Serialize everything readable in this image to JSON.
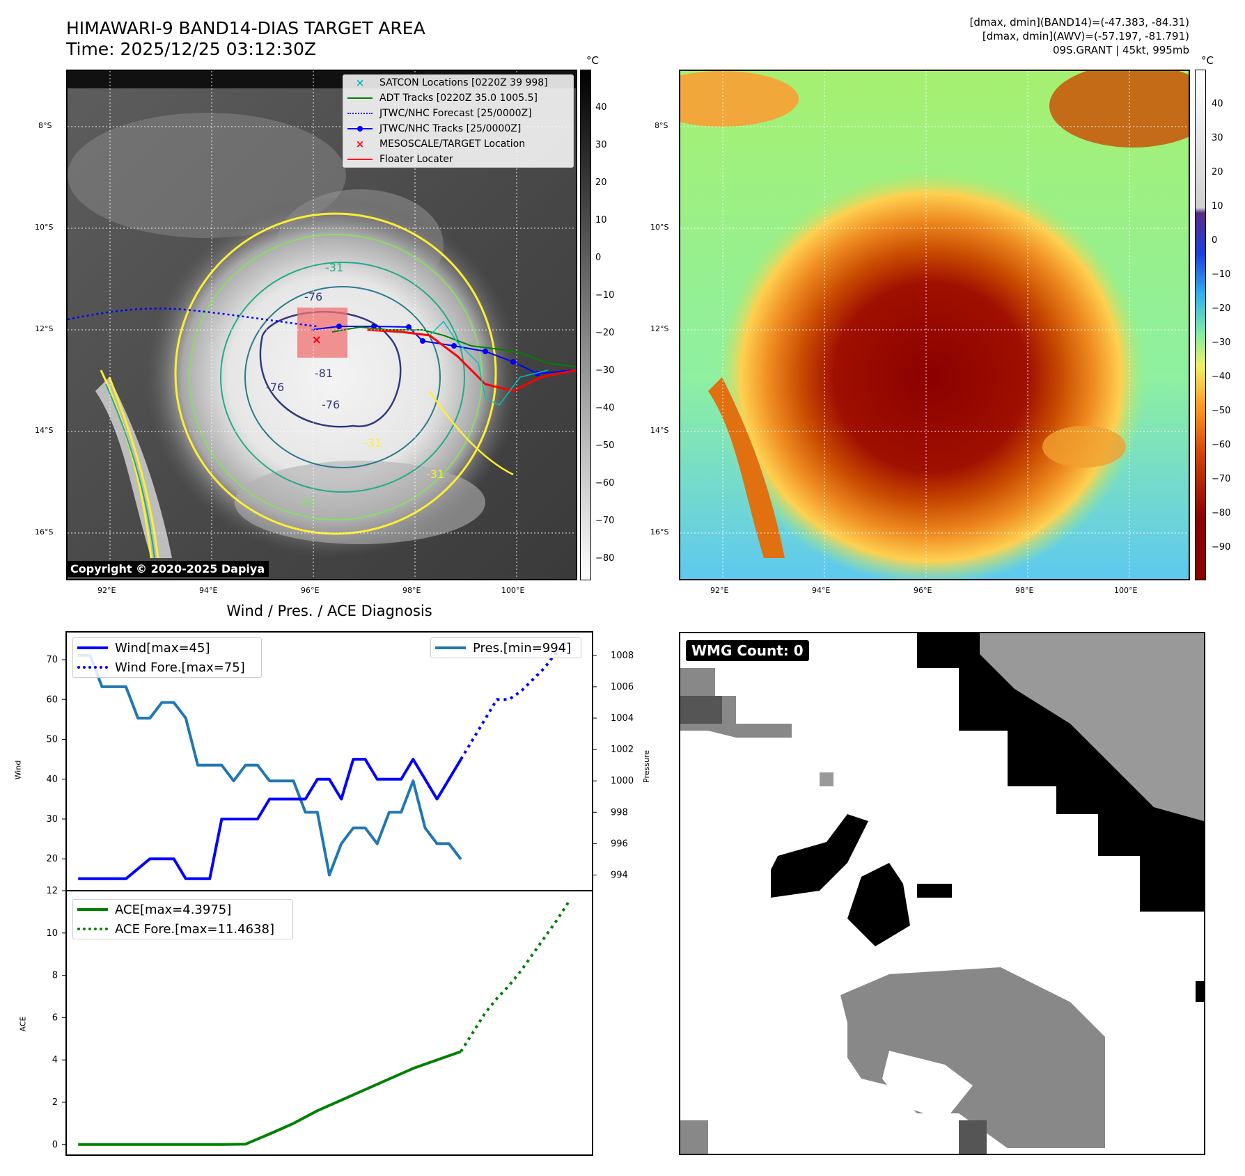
{
  "header": {
    "title_line1": "HIMAWARI-9 BAND14-DIAS TARGET AREA",
    "title_line2": "Time: 2025/12/25 03:12:30Z",
    "right_line1": "[dmax, dmin](BAND14)=(-47.383, -84.31)",
    "right_line2": "[dmax, dmin](AWV)=(-57.197, -81.791)",
    "right_line3": "09S.GRANT | 45kt, 995mb"
  },
  "maps": {
    "lon_ticks": [
      "92°E",
      "94°E",
      "96°E",
      "98°E",
      "100°E"
    ],
    "lat_ticks": [
      "8°S",
      "10°S",
      "12°S",
      "14°S",
      "16°S"
    ],
    "copyright": "Copyright © 2020-2025 Dapiya",
    "contour_labels": [
      "-31",
      "-81",
      "-76",
      "-76",
      "-31",
      "-31",
      "-31",
      "-76"
    ],
    "legend": [
      {
        "label": "SATCON Locations [0220Z 39 998]",
        "color": "#00bfbf",
        "style": "x"
      },
      {
        "label": "ADT Tracks [0220Z 35.0 1005.5]",
        "color": "#008000",
        "style": "solid"
      },
      {
        "label": "JTWC/NHC Forecast [25/0000Z]",
        "color": "#0000ff",
        "style": "dotted"
      },
      {
        "label": "JTWC/NHC Tracks [25/0000Z]",
        "color": "#0000ff",
        "style": "solid-dot"
      },
      {
        "label": "MESOSCALE/TARGET Location",
        "color": "#ff0000",
        "style": "x"
      },
      {
        "label": "Floater Locater",
        "color": "#ff0000",
        "style": "solid"
      }
    ]
  },
  "colorbars": {
    "unit": "°C",
    "gray_ticks": [
      "40",
      "30",
      "20",
      "10",
      "0",
      "−10",
      "−20",
      "−30",
      "−40",
      "−50",
      "−60",
      "−70",
      "−80"
    ],
    "color_ticks": [
      "40",
      "30",
      "20",
      "10",
      "0",
      "−10",
      "−20",
      "−30",
      "−40",
      "−50",
      "−60",
      "−70",
      "−80",
      "−90"
    ]
  },
  "diagnosis": {
    "title": "Wind / Pres. / ACE Diagnosis",
    "wind_ylabel": "Wind",
    "pres_ylabel": "Pressure",
    "ace_ylabel": "ACE",
    "wind_ticks": [
      "70",
      "60",
      "50",
      "40",
      "30",
      "20"
    ],
    "pres_ticks": [
      "1008",
      "1006",
      "1004",
      "1002",
      "1000",
      "998",
      "996",
      "994"
    ],
    "ace_ticks": [
      "12",
      "10",
      "8",
      "6",
      "4",
      "2",
      "0"
    ],
    "legend_wind": "Wind[max=45]",
    "legend_wind_fore": "Wind Fore.[max=75]",
    "legend_pres": "Pres.[min=994]",
    "legend_ace": "ACE[max=4.3975]",
    "legend_ace_fore": "ACE Fore.[max=11.4638]",
    "wmg": "WMG Count: 0"
  },
  "chart_data": [
    {
      "type": "line",
      "title": "Wind / Pres. / ACE Diagnosis",
      "ylabel": "Wind",
      "ylim": [
        12,
        77
      ],
      "series": [
        {
          "name": "Wind[max=45]",
          "color": "#0000ff",
          "style": "solid",
          "x": [
            0,
            3,
            4,
            6,
            7,
            8,
            9,
            11,
            12,
            13,
            14,
            15,
            16,
            17,
            18,
            19,
            20,
            21,
            22,
            23,
            24,
            25,
            26,
            27,
            28,
            29,
            30,
            31,
            32
          ],
          "values": [
            15,
            15,
            15,
            20,
            20,
            20,
            15,
            15,
            30,
            30,
            30,
            30,
            35,
            35,
            35,
            35,
            40,
            40,
            35,
            45,
            45,
            40,
            40,
            40,
            45,
            40,
            35,
            40,
            45
          ]
        },
        {
          "name": "Wind Fore.[max=75]",
          "color": "#0000ff",
          "style": "dotted",
          "x": [
            32,
            33,
            34,
            35,
            36,
            37,
            38,
            39,
            40,
            41
          ],
          "values": [
            45,
            50,
            55,
            60,
            60,
            62,
            65,
            68,
            72,
            75
          ]
        }
      ]
    },
    {
      "type": "line",
      "ylabel": "Pressure",
      "ylim": [
        993.0,
        1009.5
      ],
      "series": [
        {
          "name": "Pres.[min=994]",
          "color": "#1f77b4",
          "style": "solid",
          "x": [
            0,
            1,
            2,
            3,
            4,
            5,
            6,
            7,
            8,
            9,
            10,
            11,
            12,
            13,
            14,
            15,
            16,
            17,
            18,
            19,
            20,
            21,
            22,
            23,
            24,
            25,
            26,
            27,
            28,
            29,
            30,
            31,
            32
          ],
          "values": [
            1008,
            1008,
            1006,
            1006,
            1006,
            1004,
            1004,
            1005,
            1005,
            1004,
            1001,
            1001,
            1001,
            1000,
            1001,
            1001,
            1000,
            1000,
            1000,
            998,
            998,
            994,
            996,
            997,
            997,
            996,
            998,
            998,
            1000,
            997,
            996,
            996,
            995
          ]
        }
      ]
    },
    {
      "type": "line",
      "ylabel": "ACE",
      "ylim": [
        -0.5,
        12
      ],
      "series": [
        {
          "name": "ACE[max=4.3975]",
          "color": "#008000",
          "style": "solid",
          "x": [
            0,
            2,
            4,
            6,
            8,
            10,
            12,
            14,
            16,
            18,
            20,
            22,
            24,
            26,
            28,
            30,
            32
          ],
          "values": [
            0,
            0,
            0,
            0,
            0,
            0,
            0,
            0.02,
            0.5,
            1.0,
            1.6,
            2.1,
            2.6,
            3.1,
            3.6,
            4.0,
            4.3975
          ]
        },
        {
          "name": "ACE Fore.[max=11.4638]",
          "color": "#008000",
          "style": "dotted",
          "x": [
            32,
            33,
            34,
            35,
            36,
            37,
            38,
            39,
            40,
            41
          ],
          "values": [
            4.3975,
            5.3,
            6.2,
            6.9,
            7.5,
            8.2,
            9.0,
            9.8,
            10.6,
            11.4638
          ]
        }
      ]
    }
  ]
}
